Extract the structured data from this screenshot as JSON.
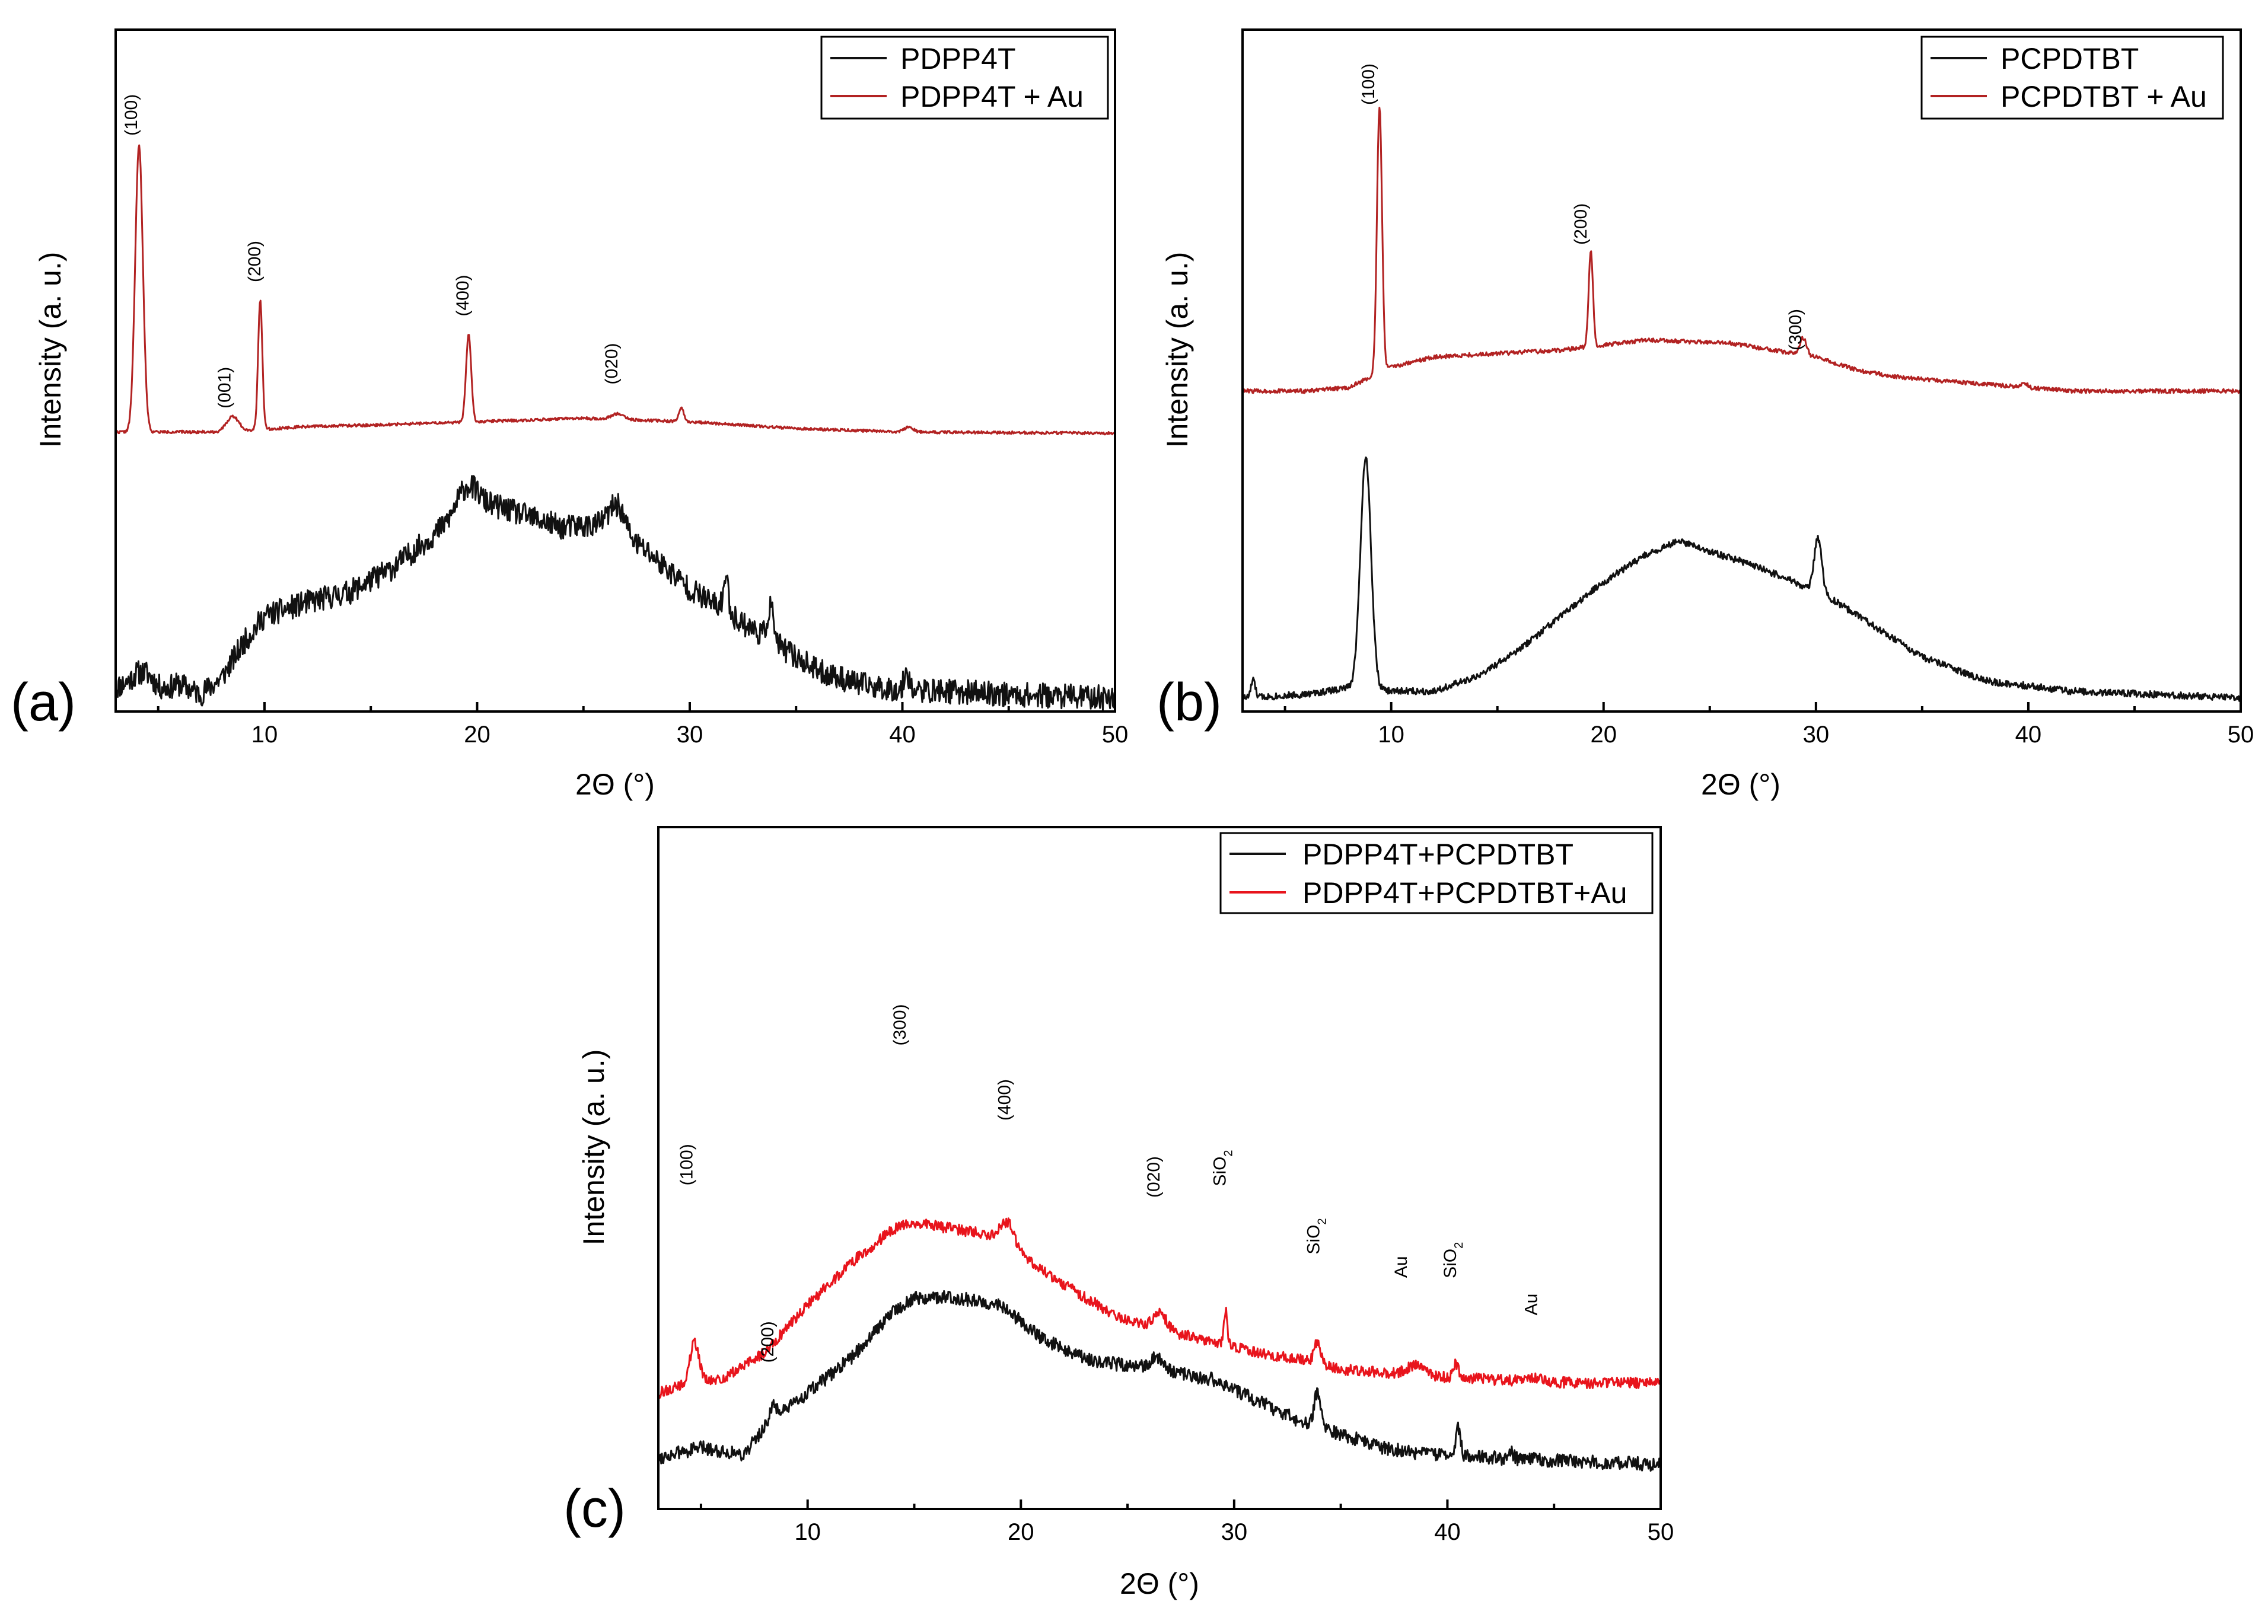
{
  "colors": {
    "black": "#111111",
    "red_dark": "#b22222",
    "red": "#e8141c"
  },
  "chart_data": [
    {
      "id": "a",
      "panel_label": "(a)",
      "type": "line",
      "xlabel": "2Θ (°)",
      "ylabel": "Intensity (a. u.)",
      "xlim": [
        3,
        50
      ],
      "ylim": [
        0,
        1
      ],
      "xticks": [
        10,
        20,
        30,
        40,
        50
      ],
      "grid": false,
      "legend": {
        "position": "top-right",
        "entries": [
          "PDPP4T",
          "PDPP4T + Au"
        ]
      },
      "series": [
        {
          "name": "PDPP4T",
          "color": "#111111",
          "noise": 0.018,
          "seed": 11,
          "points": [
            [
              3,
              0.035
            ],
            [
              4,
              0.05
            ],
            [
              5,
              0.03
            ],
            [
              6,
              0.04
            ],
            [
              7,
              0.025
            ],
            [
              8,
              0.05
            ],
            [
              9,
              0.1
            ],
            [
              10,
              0.14
            ],
            [
              12,
              0.16
            ],
            [
              14,
              0.175
            ],
            [
              16,
              0.21
            ],
            [
              18,
              0.26
            ],
            [
              19,
              0.29
            ],
            [
              20,
              0.31
            ],
            [
              22,
              0.29
            ],
            [
              24,
              0.27
            ],
            [
              26,
              0.275
            ],
            [
              28,
              0.235
            ],
            [
              30,
              0.18
            ],
            [
              32,
              0.14
            ],
            [
              34,
              0.1
            ],
            [
              36,
              0.06
            ],
            [
              38,
              0.04
            ],
            [
              40,
              0.03
            ],
            [
              42,
              0.03
            ],
            [
              45,
              0.025
            ],
            [
              50,
              0.02
            ]
          ],
          "peaks": [
            [
              4.5,
              0.015,
              0.4
            ],
            [
              19.5,
              0.03,
              0.4
            ],
            [
              26.6,
              0.04,
              0.35
            ],
            [
              31.7,
              0.05,
              0.12
            ],
            [
              33.8,
              0.05,
              0.15
            ],
            [
              40.2,
              0.03,
              0.12
            ]
          ]
        },
        {
          "name": "PDPP4T + Au",
          "color": "#b22222",
          "noise": 0.002,
          "seed": 22,
          "points": [
            [
              3,
              0.41
            ],
            [
              8,
              0.41
            ],
            [
              12,
              0.418
            ],
            [
              15,
              0.42
            ],
            [
              20,
              0.425
            ],
            [
              25,
              0.43
            ],
            [
              30,
              0.425
            ],
            [
              35,
              0.415
            ],
            [
              40,
              0.41
            ],
            [
              50,
              0.408
            ]
          ],
          "peaks": [
            [
              4.1,
              0.42,
              0.18
            ],
            [
              8.5,
              0.022,
              0.28
            ],
            [
              9.8,
              0.19,
              0.1
            ],
            [
              19.6,
              0.13,
              0.12
            ],
            [
              26.6,
              0.008,
              0.3
            ],
            [
              29.6,
              0.02,
              0.12
            ],
            [
              40.3,
              0.008,
              0.2
            ]
          ]
        }
      ],
      "annotations": [
        {
          "text": "(100)",
          "x": 4.0,
          "y": 0.875
        },
        {
          "text": "(001)",
          "x": 8.4,
          "y": 0.475
        },
        {
          "text": "(200)",
          "x": 9.8,
          "y": 0.66
        },
        {
          "text": "(400)",
          "x": 19.6,
          "y": 0.61
        },
        {
          "text": "(020)",
          "x": 26.6,
          "y": 0.51
        }
      ]
    },
    {
      "id": "b",
      "panel_label": "(b)",
      "type": "line",
      "xlabel": "2Θ (°)",
      "ylabel": "Intensity (a. u.)",
      "xlim": [
        3,
        50
      ],
      "ylim": [
        0,
        1
      ],
      "xticks": [
        10,
        20,
        30,
        40,
        50
      ],
      "grid": false,
      "legend": {
        "position": "top-right",
        "entries": [
          "PCPDTBT",
          "PCPDTBT + Au"
        ]
      },
      "series": [
        {
          "name": "PCPDTBT",
          "color": "#111111",
          "noise": 0.005,
          "seed": 33,
          "points": [
            [
              3,
              0.02
            ],
            [
              6,
              0.025
            ],
            [
              8,
              0.035
            ],
            [
              10,
              0.03
            ],
            [
              12,
              0.03
            ],
            [
              14,
              0.05
            ],
            [
              16,
              0.09
            ],
            [
              18,
              0.14
            ],
            [
              20,
              0.19
            ],
            [
              22,
              0.23
            ],
            [
              23.5,
              0.25
            ],
            [
              25,
              0.235
            ],
            [
              27,
              0.215
            ],
            [
              29,
              0.19
            ],
            [
              31,
              0.16
            ],
            [
              33,
              0.12
            ],
            [
              35,
              0.08
            ],
            [
              38,
              0.045
            ],
            [
              42,
              0.03
            ],
            [
              46,
              0.025
            ],
            [
              50,
              0.02
            ]
          ],
          "peaks": [
            [
              3.5,
              0.025,
              0.1
            ],
            [
              8.8,
              0.34,
              0.25
            ],
            [
              30.1,
              0.08,
              0.18
            ]
          ]
        },
        {
          "name": "PCPDTBT + Au",
          "color": "#b22222",
          "noise": 0.003,
          "seed": 44,
          "points": [
            [
              3,
              0.47
            ],
            [
              6,
              0.47
            ],
            [
              8,
              0.475
            ],
            [
              10,
              0.505
            ],
            [
              12,
              0.52
            ],
            [
              15,
              0.525
            ],
            [
              18,
              0.53
            ],
            [
              22,
              0.545
            ],
            [
              26,
              0.54
            ],
            [
              28,
              0.53
            ],
            [
              30,
              0.52
            ],
            [
              32,
              0.5
            ],
            [
              34,
              0.49
            ],
            [
              38,
              0.48
            ],
            [
              42,
              0.47
            ],
            [
              46,
              0.47
            ],
            [
              50,
              0.47
            ]
          ],
          "peaks": [
            [
              9.45,
              0.39,
              0.12
            ],
            [
              19.4,
              0.14,
              0.1
            ],
            [
              29.4,
              0.025,
              0.15
            ],
            [
              39.8,
              0.007,
              0.15
            ]
          ]
        }
      ],
      "annotations": [
        {
          "text": "(100)",
          "x": 9.2,
          "y": 0.92
        },
        {
          "text": "(200)",
          "x": 19.2,
          "y": 0.715
        },
        {
          "text": "(300)",
          "x": 29.3,
          "y": 0.56
        }
      ]
    },
    {
      "id": "c",
      "panel_label": "(c)",
      "type": "line",
      "xlabel": "2Θ (°)",
      "ylabel": "Intensity (a. u.)",
      "xlim": [
        3,
        50
      ],
      "ylim": [
        0,
        1
      ],
      "xticks": [
        10,
        20,
        30,
        40,
        50
      ],
      "grid": false,
      "legend": {
        "position": "top-right",
        "entries": [
          "PDPP4T+PCPDTBT",
          "PDPP4T+PCPDTBT+Au"
        ]
      },
      "series": [
        {
          "name": "PDPP4T+PCPDTBT",
          "color": "#111111",
          "noise": 0.01,
          "seed": 55,
          "points": [
            [
              3,
              0.075
            ],
            [
              5,
              0.09
            ],
            [
              7,
              0.08
            ],
            [
              8,
              0.12
            ],
            [
              10,
              0.17
            ],
            [
              12,
              0.22
            ],
            [
              14,
              0.29
            ],
            [
              15,
              0.31
            ],
            [
              17,
              0.31
            ],
            [
              19,
              0.3
            ],
            [
              21,
              0.25
            ],
            [
              23,
              0.22
            ],
            [
              25,
              0.21
            ],
            [
              27,
              0.2
            ],
            [
              29,
              0.19
            ],
            [
              31,
              0.16
            ],
            [
              33,
              0.13
            ],
            [
              35,
              0.11
            ],
            [
              37,
              0.09
            ],
            [
              39,
              0.08
            ],
            [
              42,
              0.075
            ],
            [
              46,
              0.07
            ],
            [
              50,
              0.065
            ]
          ],
          "peaks": [
            [
              8.4,
              0.02,
              0.2
            ],
            [
              26.4,
              0.02,
              0.35
            ],
            [
              33.9,
              0.05,
              0.15
            ],
            [
              40.5,
              0.04,
              0.12
            ],
            [
              43,
              0.01,
              0.1
            ]
          ]
        },
        {
          "name": "PDPP4T+PCPDTBT+Au",
          "color": "#e8141c",
          "noise": 0.008,
          "seed": 66,
          "points": [
            [
              3,
              0.17
            ],
            [
              4,
              0.18
            ],
            [
              6,
              0.19
            ],
            [
              8,
              0.23
            ],
            [
              10,
              0.3
            ],
            [
              12,
              0.36
            ],
            [
              14,
              0.41
            ],
            [
              15,
              0.42
            ],
            [
              17,
              0.41
            ],
            [
              19,
              0.4
            ],
            [
              21,
              0.35
            ],
            [
              23,
              0.31
            ],
            [
              25,
              0.275
            ],
            [
              27,
              0.26
            ],
            [
              29,
              0.245
            ],
            [
              31,
              0.23
            ],
            [
              33,
              0.22
            ],
            [
              35,
              0.205
            ],
            [
              37,
              0.2
            ],
            [
              39,
              0.195
            ],
            [
              42,
              0.19
            ],
            [
              46,
              0.185
            ],
            [
              50,
              0.185
            ]
          ],
          "peaks": [
            [
              4.7,
              0.06,
              0.22
            ],
            [
              19.4,
              0.03,
              0.3
            ],
            [
              26.5,
              0.025,
              0.3
            ],
            [
              29.6,
              0.05,
              0.08
            ],
            [
              33.9,
              0.03,
              0.15
            ],
            [
              38.5,
              0.015,
              0.4
            ],
            [
              40.4,
              0.02,
              0.12
            ],
            [
              44.1,
              0.006,
              0.3
            ]
          ]
        }
      ],
      "annotations": [
        {
          "text": "(100)",
          "x": 4.6,
          "y": 0.505
        },
        {
          "text": "(200)",
          "x": 8.4,
          "y": 0.245
        },
        {
          "text": "(300)",
          "x": 14.6,
          "y": 0.71
        },
        {
          "text": "(400)",
          "x": 19.5,
          "y": 0.6
        },
        {
          "text": "(020)",
          "x": 26.5,
          "y": 0.487
        },
        {
          "text": "SiO",
          "sub": "2",
          "x": 29.6,
          "y": 0.5
        },
        {
          "text": "SiO",
          "sub": "2",
          "x": 34.0,
          "y": 0.4
        },
        {
          "text": "Au",
          "x": 38.1,
          "y": 0.355
        },
        {
          "text": "SiO",
          "sub": "2",
          "x": 40.4,
          "y": 0.365
        },
        {
          "text": "Au",
          "x": 44.2,
          "y": 0.3
        }
      ]
    }
  ]
}
